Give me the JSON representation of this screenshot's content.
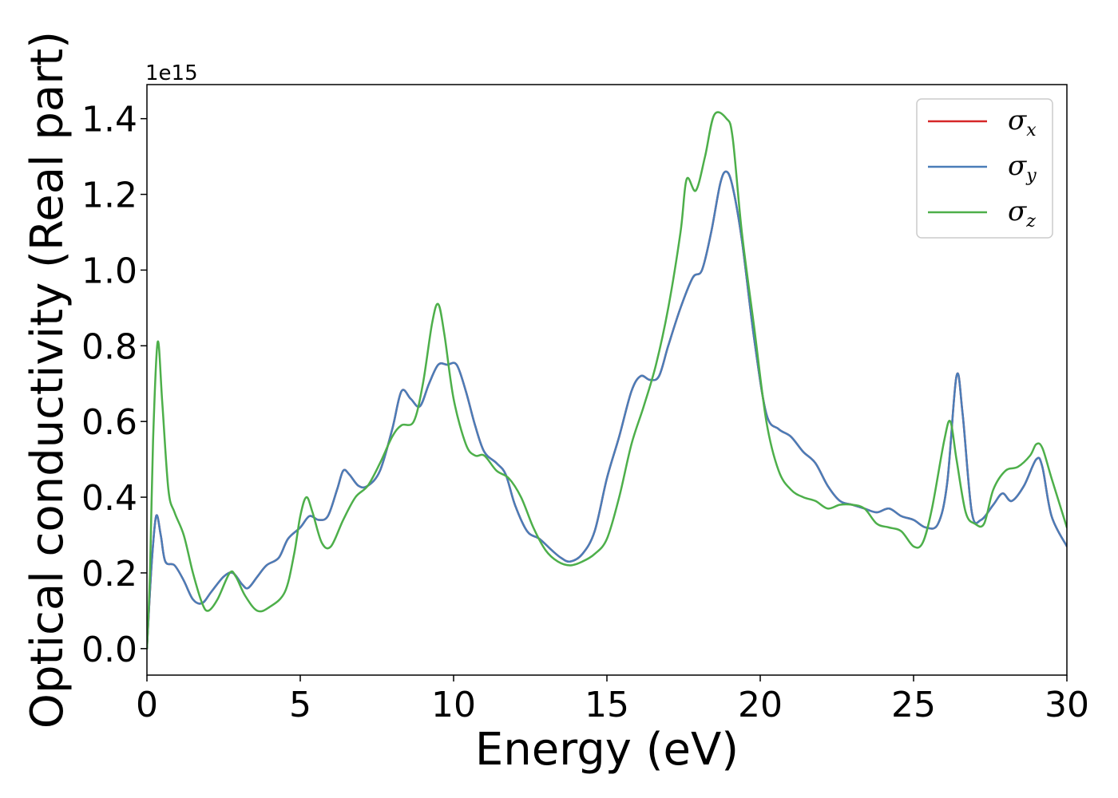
{
  "chart_data": {
    "type": "line",
    "xlabel": "Energy (eV)",
    "ylabel": "Optical conductivity (Real part)",
    "y_offset_label": "1e15",
    "xlim": [
      0,
      30
    ],
    "ylim": [
      -0.07,
      1.49
    ],
    "x_ticks": [
      0,
      5,
      10,
      15,
      20,
      25,
      30
    ],
    "x_tick_labels": [
      "0",
      "5",
      "10",
      "15",
      "20",
      "25",
      "30"
    ],
    "y_ticks": [
      0.0,
      0.2,
      0.4,
      0.6,
      0.8,
      1.0,
      1.2,
      1.4
    ],
    "y_tick_labels": [
      "0.0",
      "0.2",
      "0.4",
      "0.6",
      "0.8",
      "1.0",
      "1.2",
      "1.4"
    ],
    "grid": false,
    "legend_position": "top-right",
    "series": [
      {
        "name": "σx",
        "legend_base": "σ",
        "legend_sub": "x",
        "color": "#d62728",
        "points": [
          [
            0,
            0
          ],
          [
            0.15,
            0.22
          ],
          [
            0.3,
            0.35
          ],
          [
            0.45,
            0.3
          ],
          [
            0.6,
            0.23
          ],
          [
            0.9,
            0.22
          ],
          [
            1.2,
            0.18
          ],
          [
            1.5,
            0.13
          ],
          [
            1.8,
            0.12
          ],
          [
            2.1,
            0.15
          ],
          [
            2.5,
            0.19
          ],
          [
            2.8,
            0.2
          ],
          [
            3.1,
            0.17
          ],
          [
            3.3,
            0.16
          ],
          [
            3.6,
            0.19
          ],
          [
            3.9,
            0.22
          ],
          [
            4.3,
            0.24
          ],
          [
            4.6,
            0.29
          ],
          [
            5.0,
            0.32
          ],
          [
            5.3,
            0.35
          ],
          [
            5.6,
            0.34
          ],
          [
            5.9,
            0.35
          ],
          [
            6.2,
            0.42
          ],
          [
            6.4,
            0.47
          ],
          [
            6.6,
            0.46
          ],
          [
            6.9,
            0.43
          ],
          [
            7.2,
            0.43
          ],
          [
            7.6,
            0.47
          ],
          [
            8.0,
            0.58
          ],
          [
            8.3,
            0.68
          ],
          [
            8.6,
            0.66
          ],
          [
            8.9,
            0.64
          ],
          [
            9.2,
            0.7
          ],
          [
            9.5,
            0.75
          ],
          [
            9.8,
            0.75
          ],
          [
            10.1,
            0.75
          ],
          [
            10.4,
            0.68
          ],
          [
            10.7,
            0.59
          ],
          [
            11.0,
            0.52
          ],
          [
            11.4,
            0.49
          ],
          [
            11.7,
            0.46
          ],
          [
            12.0,
            0.38
          ],
          [
            12.4,
            0.31
          ],
          [
            12.8,
            0.29
          ],
          [
            13.2,
            0.26
          ],
          [
            13.5,
            0.24
          ],
          [
            13.8,
            0.23
          ],
          [
            14.2,
            0.25
          ],
          [
            14.6,
            0.31
          ],
          [
            15.0,
            0.45
          ],
          [
            15.4,
            0.56
          ],
          [
            15.8,
            0.68
          ],
          [
            16.1,
            0.72
          ],
          [
            16.4,
            0.71
          ],
          [
            16.7,
            0.72
          ],
          [
            17.0,
            0.8
          ],
          [
            17.4,
            0.9
          ],
          [
            17.8,
            0.98
          ],
          [
            18.1,
            1.0
          ],
          [
            18.4,
            1.1
          ],
          [
            18.7,
            1.23
          ],
          [
            18.9,
            1.26
          ],
          [
            19.1,
            1.22
          ],
          [
            19.4,
            1.08
          ],
          [
            19.8,
            0.82
          ],
          [
            20.2,
            0.62
          ],
          [
            20.6,
            0.58
          ],
          [
            21.0,
            0.56
          ],
          [
            21.4,
            0.52
          ],
          [
            21.8,
            0.49
          ],
          [
            22.2,
            0.43
          ],
          [
            22.6,
            0.39
          ],
          [
            23.0,
            0.38
          ],
          [
            23.4,
            0.37
          ],
          [
            23.8,
            0.36
          ],
          [
            24.2,
            0.37
          ],
          [
            24.6,
            0.35
          ],
          [
            25.0,
            0.34
          ],
          [
            25.4,
            0.32
          ],
          [
            25.8,
            0.33
          ],
          [
            26.1,
            0.44
          ],
          [
            26.4,
            0.72
          ],
          [
            26.6,
            0.62
          ],
          [
            26.9,
            0.36
          ],
          [
            27.2,
            0.34
          ],
          [
            27.6,
            0.38
          ],
          [
            27.9,
            0.41
          ],
          [
            28.2,
            0.39
          ],
          [
            28.6,
            0.43
          ],
          [
            29.0,
            0.5
          ],
          [
            29.2,
            0.48
          ],
          [
            29.5,
            0.35
          ],
          [
            30.0,
            0.27
          ]
        ]
      },
      {
        "name": "σy",
        "legend_base": "σ",
        "legend_sub": "y",
        "color": "#4a7db8",
        "points": [
          [
            0,
            0
          ],
          [
            0.15,
            0.22
          ],
          [
            0.3,
            0.35
          ],
          [
            0.45,
            0.3
          ],
          [
            0.6,
            0.23
          ],
          [
            0.9,
            0.22
          ],
          [
            1.2,
            0.18
          ],
          [
            1.5,
            0.13
          ],
          [
            1.8,
            0.12
          ],
          [
            2.1,
            0.15
          ],
          [
            2.5,
            0.19
          ],
          [
            2.8,
            0.2
          ],
          [
            3.1,
            0.17
          ],
          [
            3.3,
            0.16
          ],
          [
            3.6,
            0.19
          ],
          [
            3.9,
            0.22
          ],
          [
            4.3,
            0.24
          ],
          [
            4.6,
            0.29
          ],
          [
            5.0,
            0.32
          ],
          [
            5.3,
            0.35
          ],
          [
            5.6,
            0.34
          ],
          [
            5.9,
            0.35
          ],
          [
            6.2,
            0.42
          ],
          [
            6.4,
            0.47
          ],
          [
            6.6,
            0.46
          ],
          [
            6.9,
            0.43
          ],
          [
            7.2,
            0.43
          ],
          [
            7.6,
            0.47
          ],
          [
            8.0,
            0.58
          ],
          [
            8.3,
            0.68
          ],
          [
            8.6,
            0.66
          ],
          [
            8.9,
            0.64
          ],
          [
            9.2,
            0.7
          ],
          [
            9.5,
            0.75
          ],
          [
            9.8,
            0.75
          ],
          [
            10.1,
            0.75
          ],
          [
            10.4,
            0.68
          ],
          [
            10.7,
            0.59
          ],
          [
            11.0,
            0.52
          ],
          [
            11.4,
            0.49
          ],
          [
            11.7,
            0.46
          ],
          [
            12.0,
            0.38
          ],
          [
            12.4,
            0.31
          ],
          [
            12.8,
            0.29
          ],
          [
            13.2,
            0.26
          ],
          [
            13.5,
            0.24
          ],
          [
            13.8,
            0.23
          ],
          [
            14.2,
            0.25
          ],
          [
            14.6,
            0.31
          ],
          [
            15.0,
            0.45
          ],
          [
            15.4,
            0.56
          ],
          [
            15.8,
            0.68
          ],
          [
            16.1,
            0.72
          ],
          [
            16.4,
            0.71
          ],
          [
            16.7,
            0.72
          ],
          [
            17.0,
            0.8
          ],
          [
            17.4,
            0.9
          ],
          [
            17.8,
            0.98
          ],
          [
            18.1,
            1.0
          ],
          [
            18.4,
            1.1
          ],
          [
            18.7,
            1.23
          ],
          [
            18.9,
            1.26
          ],
          [
            19.1,
            1.22
          ],
          [
            19.4,
            1.08
          ],
          [
            19.8,
            0.82
          ],
          [
            20.2,
            0.62
          ],
          [
            20.6,
            0.58
          ],
          [
            21.0,
            0.56
          ],
          [
            21.4,
            0.52
          ],
          [
            21.8,
            0.49
          ],
          [
            22.2,
            0.43
          ],
          [
            22.6,
            0.39
          ],
          [
            23.0,
            0.38
          ],
          [
            23.4,
            0.37
          ],
          [
            23.8,
            0.36
          ],
          [
            24.2,
            0.37
          ],
          [
            24.6,
            0.35
          ],
          [
            25.0,
            0.34
          ],
          [
            25.4,
            0.32
          ],
          [
            25.8,
            0.33
          ],
          [
            26.1,
            0.44
          ],
          [
            26.4,
            0.72
          ],
          [
            26.6,
            0.62
          ],
          [
            26.9,
            0.36
          ],
          [
            27.2,
            0.34
          ],
          [
            27.6,
            0.38
          ],
          [
            27.9,
            0.41
          ],
          [
            28.2,
            0.39
          ],
          [
            28.6,
            0.43
          ],
          [
            29.0,
            0.5
          ],
          [
            29.2,
            0.48
          ],
          [
            29.5,
            0.35
          ],
          [
            30.0,
            0.27
          ]
        ]
      },
      {
        "name": "σz",
        "legend_base": "σ",
        "legend_sub": "z",
        "color": "#4daf4a",
        "points": [
          [
            0,
            0
          ],
          [
            0.1,
            0.2
          ],
          [
            0.2,
            0.55
          ],
          [
            0.35,
            0.81
          ],
          [
            0.5,
            0.65
          ],
          [
            0.7,
            0.42
          ],
          [
            0.9,
            0.36
          ],
          [
            1.2,
            0.3
          ],
          [
            1.5,
            0.2
          ],
          [
            1.8,
            0.12
          ],
          [
            2.0,
            0.1
          ],
          [
            2.3,
            0.13
          ],
          [
            2.7,
            0.2
          ],
          [
            2.9,
            0.19
          ],
          [
            3.2,
            0.14
          ],
          [
            3.6,
            0.1
          ],
          [
            4.0,
            0.11
          ],
          [
            4.5,
            0.15
          ],
          [
            4.8,
            0.25
          ],
          [
            5.0,
            0.35
          ],
          [
            5.2,
            0.4
          ],
          [
            5.4,
            0.36
          ],
          [
            5.7,
            0.28
          ],
          [
            6.0,
            0.27
          ],
          [
            6.4,
            0.34
          ],
          [
            6.8,
            0.4
          ],
          [
            7.2,
            0.43
          ],
          [
            7.6,
            0.49
          ],
          [
            8.0,
            0.56
          ],
          [
            8.3,
            0.59
          ],
          [
            8.7,
            0.6
          ],
          [
            9.0,
            0.7
          ],
          [
            9.3,
            0.86
          ],
          [
            9.5,
            0.91
          ],
          [
            9.7,
            0.83
          ],
          [
            10.0,
            0.66
          ],
          [
            10.4,
            0.54
          ],
          [
            10.7,
            0.51
          ],
          [
            11.0,
            0.51
          ],
          [
            11.4,
            0.47
          ],
          [
            11.8,
            0.45
          ],
          [
            12.2,
            0.4
          ],
          [
            12.6,
            0.32
          ],
          [
            13.0,
            0.26
          ],
          [
            13.4,
            0.23
          ],
          [
            13.8,
            0.22
          ],
          [
            14.2,
            0.23
          ],
          [
            14.6,
            0.25
          ],
          [
            15.0,
            0.29
          ],
          [
            15.4,
            0.4
          ],
          [
            15.8,
            0.54
          ],
          [
            16.2,
            0.64
          ],
          [
            16.6,
            0.75
          ],
          [
            17.0,
            0.9
          ],
          [
            17.4,
            1.1
          ],
          [
            17.6,
            1.24
          ],
          [
            17.9,
            1.21
          ],
          [
            18.2,
            1.3
          ],
          [
            18.5,
            1.41
          ],
          [
            18.9,
            1.4
          ],
          [
            19.1,
            1.35
          ],
          [
            19.4,
            1.1
          ],
          [
            19.8,
            0.85
          ],
          [
            20.2,
            0.6
          ],
          [
            20.6,
            0.47
          ],
          [
            21.0,
            0.42
          ],
          [
            21.4,
            0.4
          ],
          [
            21.8,
            0.39
          ],
          [
            22.2,
            0.37
          ],
          [
            22.6,
            0.38
          ],
          [
            23.0,
            0.38
          ],
          [
            23.4,
            0.37
          ],
          [
            23.8,
            0.33
          ],
          [
            24.2,
            0.32
          ],
          [
            24.6,
            0.31
          ],
          [
            25.0,
            0.27
          ],
          [
            25.3,
            0.28
          ],
          [
            25.6,
            0.37
          ],
          [
            26.0,
            0.55
          ],
          [
            26.2,
            0.6
          ],
          [
            26.4,
            0.5
          ],
          [
            26.7,
            0.36
          ],
          [
            27.0,
            0.33
          ],
          [
            27.3,
            0.33
          ],
          [
            27.6,
            0.42
          ],
          [
            28.0,
            0.47
          ],
          [
            28.4,
            0.48
          ],
          [
            28.8,
            0.51
          ],
          [
            29.0,
            0.54
          ],
          [
            29.2,
            0.53
          ],
          [
            29.5,
            0.45
          ],
          [
            30.0,
            0.32
          ]
        ]
      }
    ]
  }
}
